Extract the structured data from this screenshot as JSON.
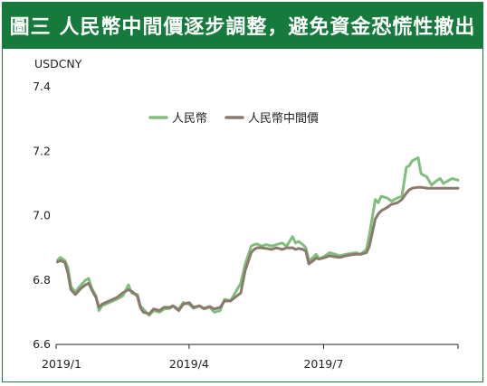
{
  "title": "圖三  人民幣中間價逐步調整，避免資金恐慌性撤出",
  "chart_data": {
    "type": "line",
    "ylabel": "USDCNY",
    "ylim": [
      6.6,
      7.4
    ],
    "yticks": [
      "6.6",
      "6.8",
      "7.0",
      "7.2",
      "7.4"
    ],
    "xlim": [
      "2019-01-01",
      "2019-09-30"
    ],
    "xticks": [
      {
        "label": "2019/1",
        "date": "2019-01-01"
      },
      {
        "label": "2019/4",
        "date": "2019-04-01"
      },
      {
        "label": "2019/7",
        "date": "2019-07-01"
      }
    ],
    "grid": false,
    "legend_position": "top-center",
    "series": [
      {
        "name": "人民幣",
        "color": "#7fbf7b",
        "points": [
          [
            "2019-01-02",
            6.862
          ],
          [
            "2019-01-04",
            6.87
          ],
          [
            "2019-01-07",
            6.86
          ],
          [
            "2019-01-09",
            6.838
          ],
          [
            "2019-01-11",
            6.78
          ],
          [
            "2019-01-14",
            6.762
          ],
          [
            "2019-01-16",
            6.775
          ],
          [
            "2019-01-18",
            6.785
          ],
          [
            "2019-01-21",
            6.8
          ],
          [
            "2019-01-23",
            6.805
          ],
          [
            "2019-01-25",
            6.775
          ],
          [
            "2019-01-28",
            6.75
          ],
          [
            "2019-01-30",
            6.705
          ],
          [
            "2019-02-01",
            6.72
          ],
          [
            "2019-02-11",
            6.74
          ],
          [
            "2019-02-15",
            6.75
          ],
          [
            "2019-02-19",
            6.785
          ],
          [
            "2019-02-21",
            6.76
          ],
          [
            "2019-02-25",
            6.755
          ],
          [
            "2019-02-27",
            6.72
          ],
          [
            "2019-03-01",
            6.71
          ],
          [
            "2019-03-05",
            6.69
          ],
          [
            "2019-03-08",
            6.705
          ],
          [
            "2019-03-12",
            6.7
          ],
          [
            "2019-03-15",
            6.71
          ],
          [
            "2019-03-19",
            6.712
          ],
          [
            "2019-03-21",
            6.72
          ],
          [
            "2019-03-25",
            6.71
          ],
          [
            "2019-03-28",
            6.73
          ],
          [
            "2019-04-01",
            6.725
          ],
          [
            "2019-04-04",
            6.712
          ],
          [
            "2019-04-08",
            6.72
          ],
          [
            "2019-04-11",
            6.71
          ],
          [
            "2019-04-15",
            6.715
          ],
          [
            "2019-04-18",
            6.7
          ],
          [
            "2019-04-22",
            6.705
          ],
          [
            "2019-04-25",
            6.74
          ],
          [
            "2019-04-29",
            6.735
          ],
          [
            "2019-05-06",
            6.79
          ],
          [
            "2019-05-09",
            6.85
          ],
          [
            "2019-05-13",
            6.905
          ],
          [
            "2019-05-15",
            6.91
          ],
          [
            "2019-05-17",
            6.912
          ],
          [
            "2019-05-20",
            6.905
          ],
          [
            "2019-05-23",
            6.91
          ],
          [
            "2019-05-27",
            6.905
          ],
          [
            "2019-05-30",
            6.91
          ],
          [
            "2019-06-03",
            6.915
          ],
          [
            "2019-06-06",
            6.905
          ],
          [
            "2019-06-10",
            6.935
          ],
          [
            "2019-06-12",
            6.915
          ],
          [
            "2019-06-14",
            6.92
          ],
          [
            "2019-06-17",
            6.91
          ],
          [
            "2019-06-19",
            6.9
          ],
          [
            "2019-06-21",
            6.86
          ],
          [
            "2019-06-24",
            6.87
          ],
          [
            "2019-06-26",
            6.88
          ],
          [
            "2019-06-28",
            6.865
          ],
          [
            "2019-07-02",
            6.875
          ],
          [
            "2019-07-05",
            6.885
          ],
          [
            "2019-07-09",
            6.88
          ],
          [
            "2019-07-12",
            6.875
          ],
          [
            "2019-07-16",
            6.88
          ],
          [
            "2019-07-19",
            6.882
          ],
          [
            "2019-07-23",
            6.885
          ],
          [
            "2019-07-26",
            6.88
          ],
          [
            "2019-07-30",
            6.895
          ],
          [
            "2019-08-01",
            6.94
          ],
          [
            "2019-08-05",
            7.05
          ],
          [
            "2019-08-07",
            7.04
          ],
          [
            "2019-08-09",
            7.06
          ],
          [
            "2019-08-13",
            7.055
          ],
          [
            "2019-08-16",
            7.045
          ],
          [
            "2019-08-20",
            7.055
          ],
          [
            "2019-08-23",
            7.06
          ],
          [
            "2019-08-26",
            7.15
          ],
          [
            "2019-08-28",
            7.155
          ],
          [
            "2019-08-30",
            7.17
          ],
          [
            "2019-09-03",
            7.18
          ],
          [
            "2019-09-05",
            7.13
          ],
          [
            "2019-09-09",
            7.12
          ],
          [
            "2019-09-12",
            7.095
          ],
          [
            "2019-09-16",
            7.11
          ],
          [
            "2019-09-18",
            7.115
          ],
          [
            "2019-09-20",
            7.1
          ],
          [
            "2019-09-24",
            7.11
          ],
          [
            "2019-09-26",
            7.115
          ],
          [
            "2019-09-30",
            7.11
          ]
        ]
      },
      {
        "name": "人民幣中間價",
        "color": "#8b7a6b",
        "points": [
          [
            "2019-01-02",
            6.856
          ],
          [
            "2019-01-04",
            6.86
          ],
          [
            "2019-01-07",
            6.855
          ],
          [
            "2019-01-09",
            6.82
          ],
          [
            "2019-01-11",
            6.77
          ],
          [
            "2019-01-14",
            6.755
          ],
          [
            "2019-01-16",
            6.765
          ],
          [
            "2019-01-18",
            6.775
          ],
          [
            "2019-01-21",
            6.785
          ],
          [
            "2019-01-23",
            6.79
          ],
          [
            "2019-01-25",
            6.77
          ],
          [
            "2019-01-28",
            6.745
          ],
          [
            "2019-01-30",
            6.715
          ],
          [
            "2019-02-01",
            6.725
          ],
          [
            "2019-02-11",
            6.745
          ],
          [
            "2019-02-15",
            6.76
          ],
          [
            "2019-02-19",
            6.77
          ],
          [
            "2019-02-21",
            6.765
          ],
          [
            "2019-02-25",
            6.75
          ],
          [
            "2019-02-27",
            6.715
          ],
          [
            "2019-03-01",
            6.7
          ],
          [
            "2019-03-05",
            6.695
          ],
          [
            "2019-03-08",
            6.71
          ],
          [
            "2019-03-12",
            6.705
          ],
          [
            "2019-03-15",
            6.715
          ],
          [
            "2019-03-19",
            6.715
          ],
          [
            "2019-03-21",
            6.72
          ],
          [
            "2019-03-25",
            6.705
          ],
          [
            "2019-03-28",
            6.725
          ],
          [
            "2019-04-01",
            6.73
          ],
          [
            "2019-04-04",
            6.715
          ],
          [
            "2019-04-08",
            6.72
          ],
          [
            "2019-04-11",
            6.712
          ],
          [
            "2019-04-15",
            6.718
          ],
          [
            "2019-04-18",
            6.71
          ],
          [
            "2019-04-22",
            6.715
          ],
          [
            "2019-04-25",
            6.735
          ],
          [
            "2019-04-29",
            6.735
          ],
          [
            "2019-05-06",
            6.76
          ],
          [
            "2019-05-09",
            6.83
          ],
          [
            "2019-05-13",
            6.885
          ],
          [
            "2019-05-15",
            6.895
          ],
          [
            "2019-05-17",
            6.9
          ],
          [
            "2019-05-20",
            6.9
          ],
          [
            "2019-05-23",
            6.898
          ],
          [
            "2019-05-27",
            6.895
          ],
          [
            "2019-05-30",
            6.9
          ],
          [
            "2019-06-03",
            6.895
          ],
          [
            "2019-06-06",
            6.9
          ],
          [
            "2019-06-10",
            6.9
          ],
          [
            "2019-06-12",
            6.895
          ],
          [
            "2019-06-14",
            6.898
          ],
          [
            "2019-06-17",
            6.895
          ],
          [
            "2019-06-19",
            6.89
          ],
          [
            "2019-06-21",
            6.85
          ],
          [
            "2019-06-24",
            6.86
          ],
          [
            "2019-06-26",
            6.868
          ],
          [
            "2019-06-28",
            6.865
          ],
          [
            "2019-07-02",
            6.87
          ],
          [
            "2019-07-05",
            6.875
          ],
          [
            "2019-07-09",
            6.872
          ],
          [
            "2019-07-12",
            6.87
          ],
          [
            "2019-07-16",
            6.875
          ],
          [
            "2019-07-19",
            6.878
          ],
          [
            "2019-07-23",
            6.88
          ],
          [
            "2019-07-26",
            6.88
          ],
          [
            "2019-07-30",
            6.885
          ],
          [
            "2019-08-01",
            6.905
          ],
          [
            "2019-08-05",
            6.99
          ],
          [
            "2019-08-07",
            7.005
          ],
          [
            "2019-08-09",
            7.015
          ],
          [
            "2019-08-13",
            7.025
          ],
          [
            "2019-08-16",
            7.035
          ],
          [
            "2019-08-20",
            7.04
          ],
          [
            "2019-08-23",
            7.05
          ],
          [
            "2019-08-26",
            7.07
          ],
          [
            "2019-08-28",
            7.08
          ],
          [
            "2019-08-30",
            7.085
          ],
          [
            "2019-09-03",
            7.088
          ],
          [
            "2019-09-05",
            7.088
          ],
          [
            "2019-09-09",
            7.085
          ],
          [
            "2019-09-12",
            7.085
          ],
          [
            "2019-09-16",
            7.085
          ],
          [
            "2019-09-18",
            7.085
          ],
          [
            "2019-09-20",
            7.085
          ],
          [
            "2019-09-24",
            7.085
          ],
          [
            "2019-09-26",
            7.085
          ],
          [
            "2019-09-30",
            7.085
          ]
        ]
      }
    ]
  }
}
